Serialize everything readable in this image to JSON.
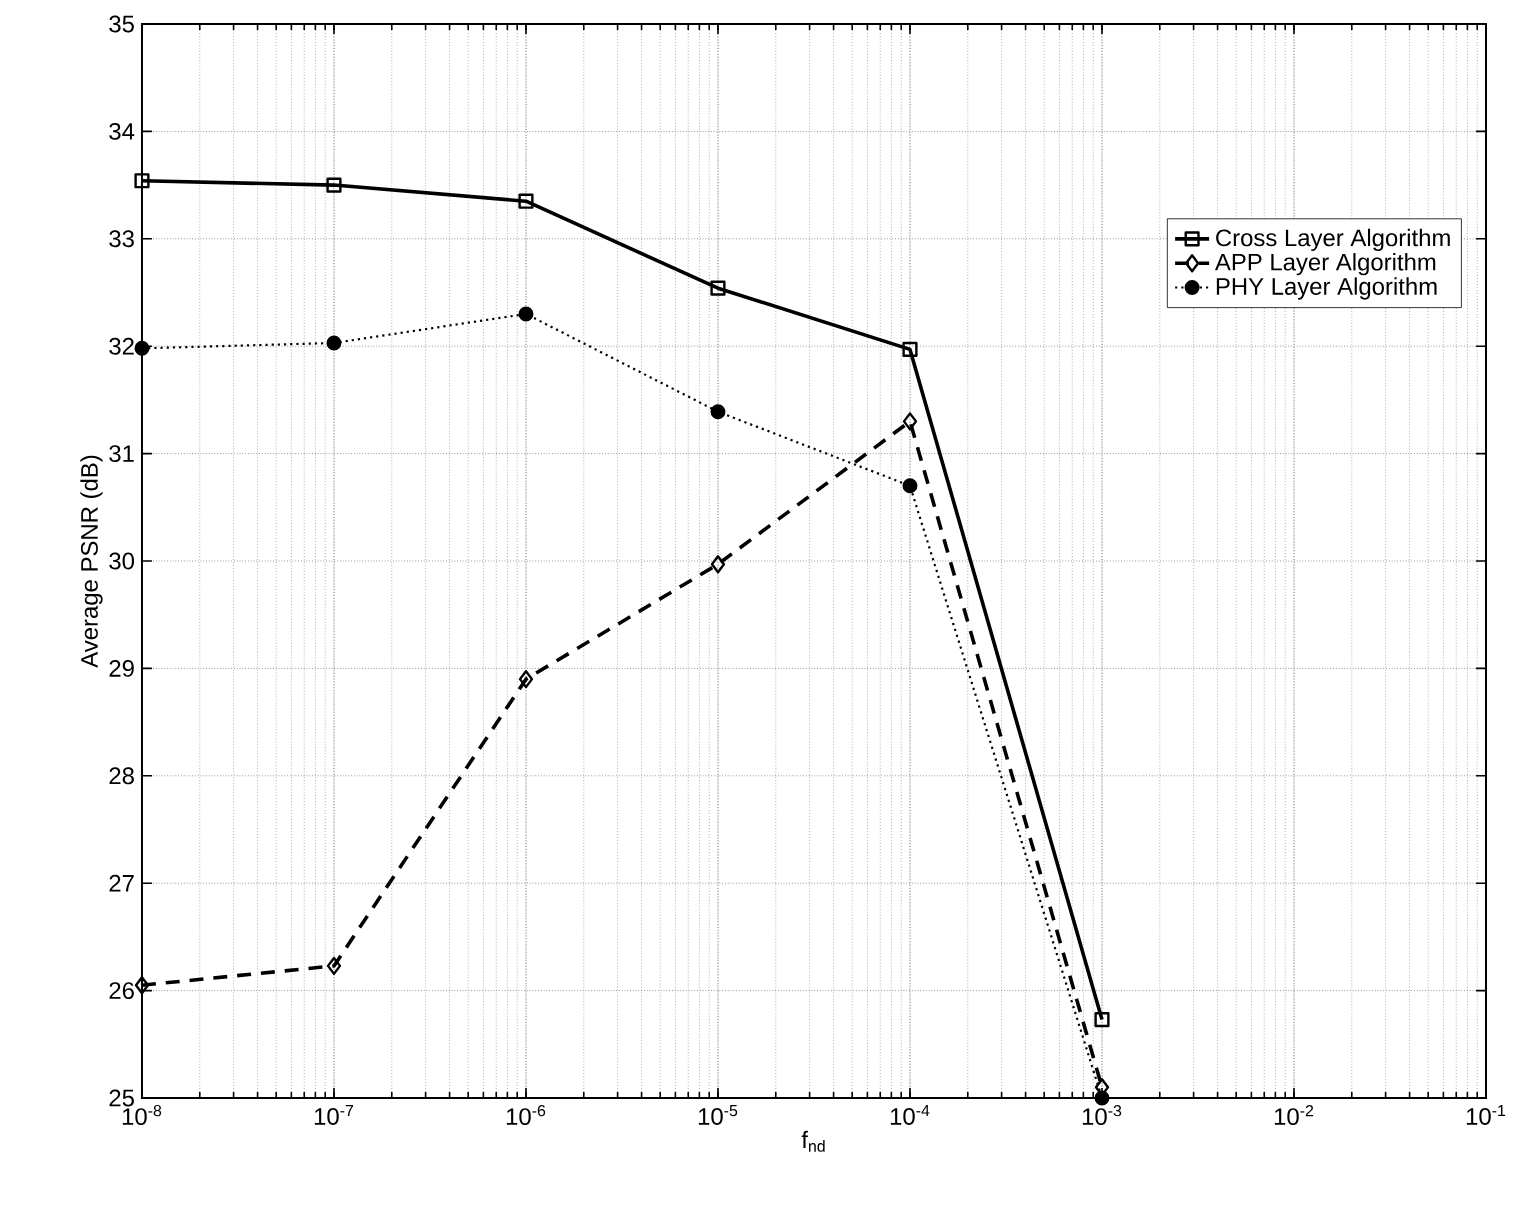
{
  "chart_data": {
    "type": "line",
    "xlabel": "f$_{nd}$",
    "ylabel": "Average PSNR (dB)",
    "log": "x",
    "x": [
      1e-08,
      1e-07,
      1e-06,
      1e-05,
      0.0001,
      0.001
    ],
    "xlim": [
      1e-08,
      0.1
    ],
    "xticks": [
      {
        "value": 1e-08,
        "label": "10$^{-8}$"
      },
      {
        "value": 1e-07,
        "label": "10$^{-7}$"
      },
      {
        "value": 1e-06,
        "label": "10$^{-6}$"
      },
      {
        "value": 1e-05,
        "label": "10$^{-5}$"
      },
      {
        "value": 0.0001,
        "label": "10$^{-4}$"
      },
      {
        "value": 0.001,
        "label": "10$^{-3}$"
      },
      {
        "value": 0.01,
        "label": "10$^{-2}$"
      },
      {
        "value": 0.1,
        "label": "10$^{-1}$"
      }
    ],
    "ylim": [
      25,
      35
    ],
    "yticks": [
      25,
      26,
      27,
      28,
      29,
      30,
      31,
      32,
      33,
      34,
      35
    ],
    "grid": true,
    "legend": "top right",
    "series": [
      {
        "name": "Cross Layer Algorithm",
        "color": "#000000",
        "marker": "square",
        "line_style": "solid",
        "values": [
          33.54,
          33.5,
          33.35,
          32.54,
          31.97,
          25.73
        ]
      },
      {
        "name": "APP Layer Algorithm",
        "color": "#000000",
        "marker": "diamond",
        "line_style": "dashed",
        "values": [
          26.05,
          26.23,
          28.9,
          29.97,
          31.3,
          25.1
        ]
      },
      {
        "name": "PHY Layer Algorithm",
        "color": "#000000",
        "marker": "circle",
        "line_style": "dotted",
        "values": [
          31.98,
          32.03,
          32.3,
          31.39,
          30.7,
          25.0
        ]
      }
    ]
  }
}
